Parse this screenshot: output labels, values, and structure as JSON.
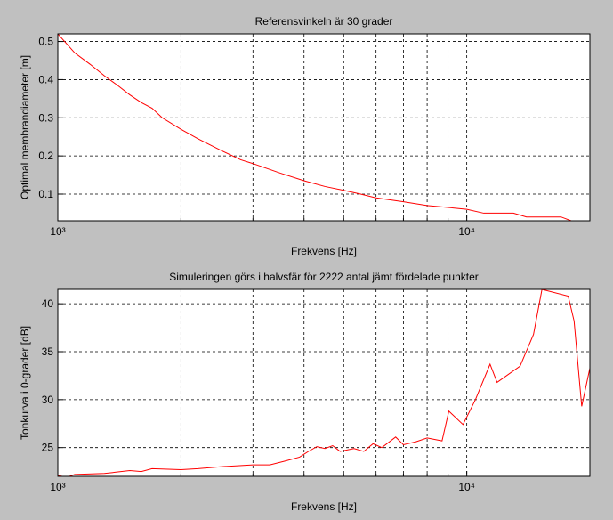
{
  "chart_data": [
    {
      "type": "line",
      "title": "Referensvinkeln är 30 grader",
      "xlabel": "Frekvens [Hz]",
      "ylabel": "Optimal membrandiameter [m]",
      "xscale": "log",
      "xlim": [
        1000,
        20000
      ],
      "xticks": [
        {
          "value": 1000,
          "label": "10³"
        },
        {
          "value": 10000,
          "label": "10⁴"
        }
      ],
      "xminor": [
        2000,
        3000,
        4000,
        5000,
        6000,
        7000,
        8000,
        9000
      ],
      "ylim": [
        0.03,
        0.52
      ],
      "yticks": [
        0.1,
        0.2,
        0.3,
        0.4,
        0.5
      ],
      "grid": true,
      "series": [
        {
          "color": "#ff0000",
          "x": [
            1000,
            1100,
            1200,
            1300,
            1400,
            1500,
            1600,
            1700,
            1800,
            2000,
            2200,
            2500,
            2800,
            3000,
            3500,
            4000,
            4500,
            5000,
            5500,
            6000,
            7000,
            8000,
            9000,
            10000,
            11000,
            13000,
            14000,
            17000,
            18000,
            20000
          ],
          "values": [
            0.52,
            0.47,
            0.44,
            0.41,
            0.385,
            0.36,
            0.34,
            0.325,
            0.3,
            0.27,
            0.245,
            0.215,
            0.19,
            0.18,
            0.155,
            0.135,
            0.12,
            0.11,
            0.1,
            0.09,
            0.08,
            0.07,
            0.065,
            0.06,
            0.05,
            0.05,
            0.04,
            0.04,
            0.03,
            0.03
          ]
        }
      ]
    },
    {
      "type": "line",
      "title": "Simuleringen görs i halvsfär för 2222 antal jämt fördelade punkter",
      "xlabel": "Frekvens [Hz]",
      "ylabel": "Tonkurva i 0-grader [dB]",
      "xscale": "log",
      "xlim": [
        1000,
        20000
      ],
      "xticks": [
        {
          "value": 1000,
          "label": "10³"
        },
        {
          "value": 10000,
          "label": "10⁴"
        }
      ],
      "xminor": [
        2000,
        3000,
        4000,
        5000,
        6000,
        7000,
        8000,
        9000
      ],
      "ylim": [
        22,
        41.5
      ],
      "yticks": [
        25,
        30,
        35,
        40
      ],
      "grid": true,
      "series": [
        {
          "color": "#ff0000",
          "x": [
            1000,
            1050,
            1100,
            1300,
            1500,
            1600,
            1700,
            2000,
            2200,
            2500,
            3000,
            3300,
            3600,
            3900,
            4100,
            4300,
            4500,
            4700,
            4900,
            5300,
            5600,
            5900,
            6200,
            6700,
            7000,
            7500,
            8000,
            8700,
            9040,
            9790,
            10500,
            11400,
            11860,
            13500,
            14560,
            15270,
            17700,
            18300,
            19100,
            20000
          ],
          "values": [
            22.1,
            21.9,
            22.2,
            22.3,
            22.6,
            22.5,
            22.8,
            22.7,
            22.8,
            23.0,
            23.2,
            23.2,
            23.6,
            24.0,
            24.6,
            25.1,
            24.9,
            25.2,
            24.6,
            24.9,
            24.6,
            25.4,
            25.0,
            26.1,
            25.3,
            25.6,
            26.0,
            25.7,
            28.8,
            27.4,
            30.0,
            33.7,
            31.8,
            33.5,
            36.8,
            41.5,
            40.8,
            38.2,
            29.3,
            33.3
          ]
        }
      ]
    }
  ]
}
